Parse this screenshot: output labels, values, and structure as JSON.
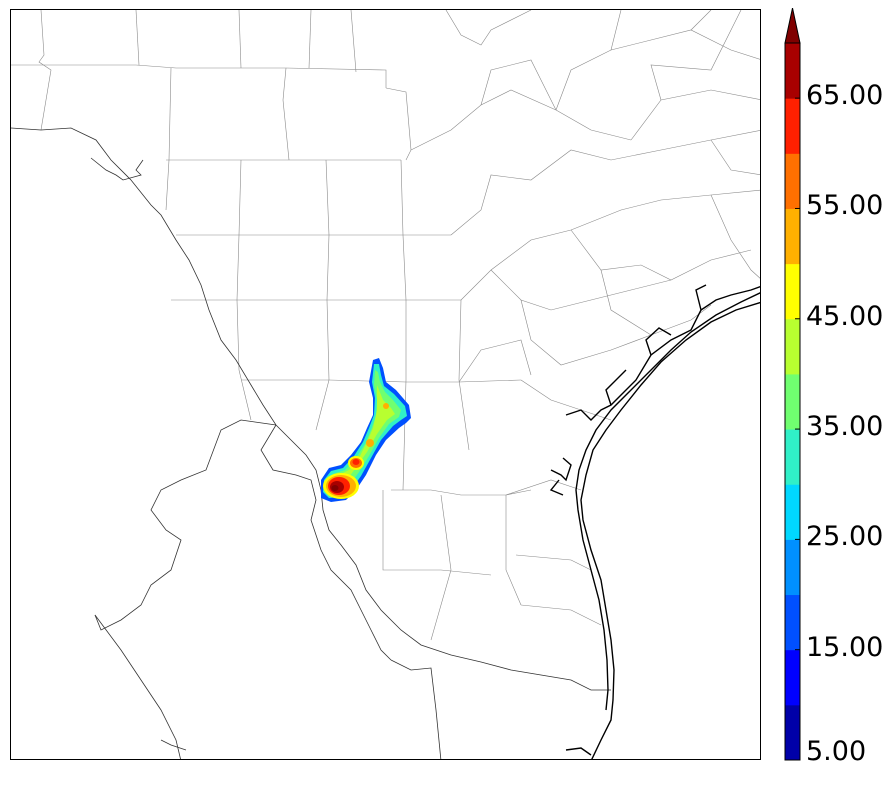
{
  "map": {
    "description_free": true
  },
  "colorbar": {
    "levels": [
      5,
      10,
      15,
      20,
      25,
      30,
      35,
      40,
      45,
      50,
      55,
      60,
      65,
      70
    ],
    "colors": [
      "#0000a8",
      "#0000ff",
      "#0050ff",
      "#0090ff",
      "#00d8ff",
      "#30f0c8",
      "#70ff70",
      "#b8ff30",
      "#ffff00",
      "#ffb000",
      "#ff7000",
      "#ff2000",
      "#a80000"
    ],
    "extend_color": "#800000",
    "tick_labels": [
      {
        "value": 5,
        "label": "5.00"
      },
      {
        "value": 15,
        "label": "15.00"
      },
      {
        "value": 25,
        "label": "25.00"
      },
      {
        "value": 35,
        "label": "35.00"
      },
      {
        "value": 45,
        "label": "45.00"
      },
      {
        "value": 55,
        "label": "55.00"
      },
      {
        "value": 65,
        "label": "65.00"
      }
    ]
  }
}
